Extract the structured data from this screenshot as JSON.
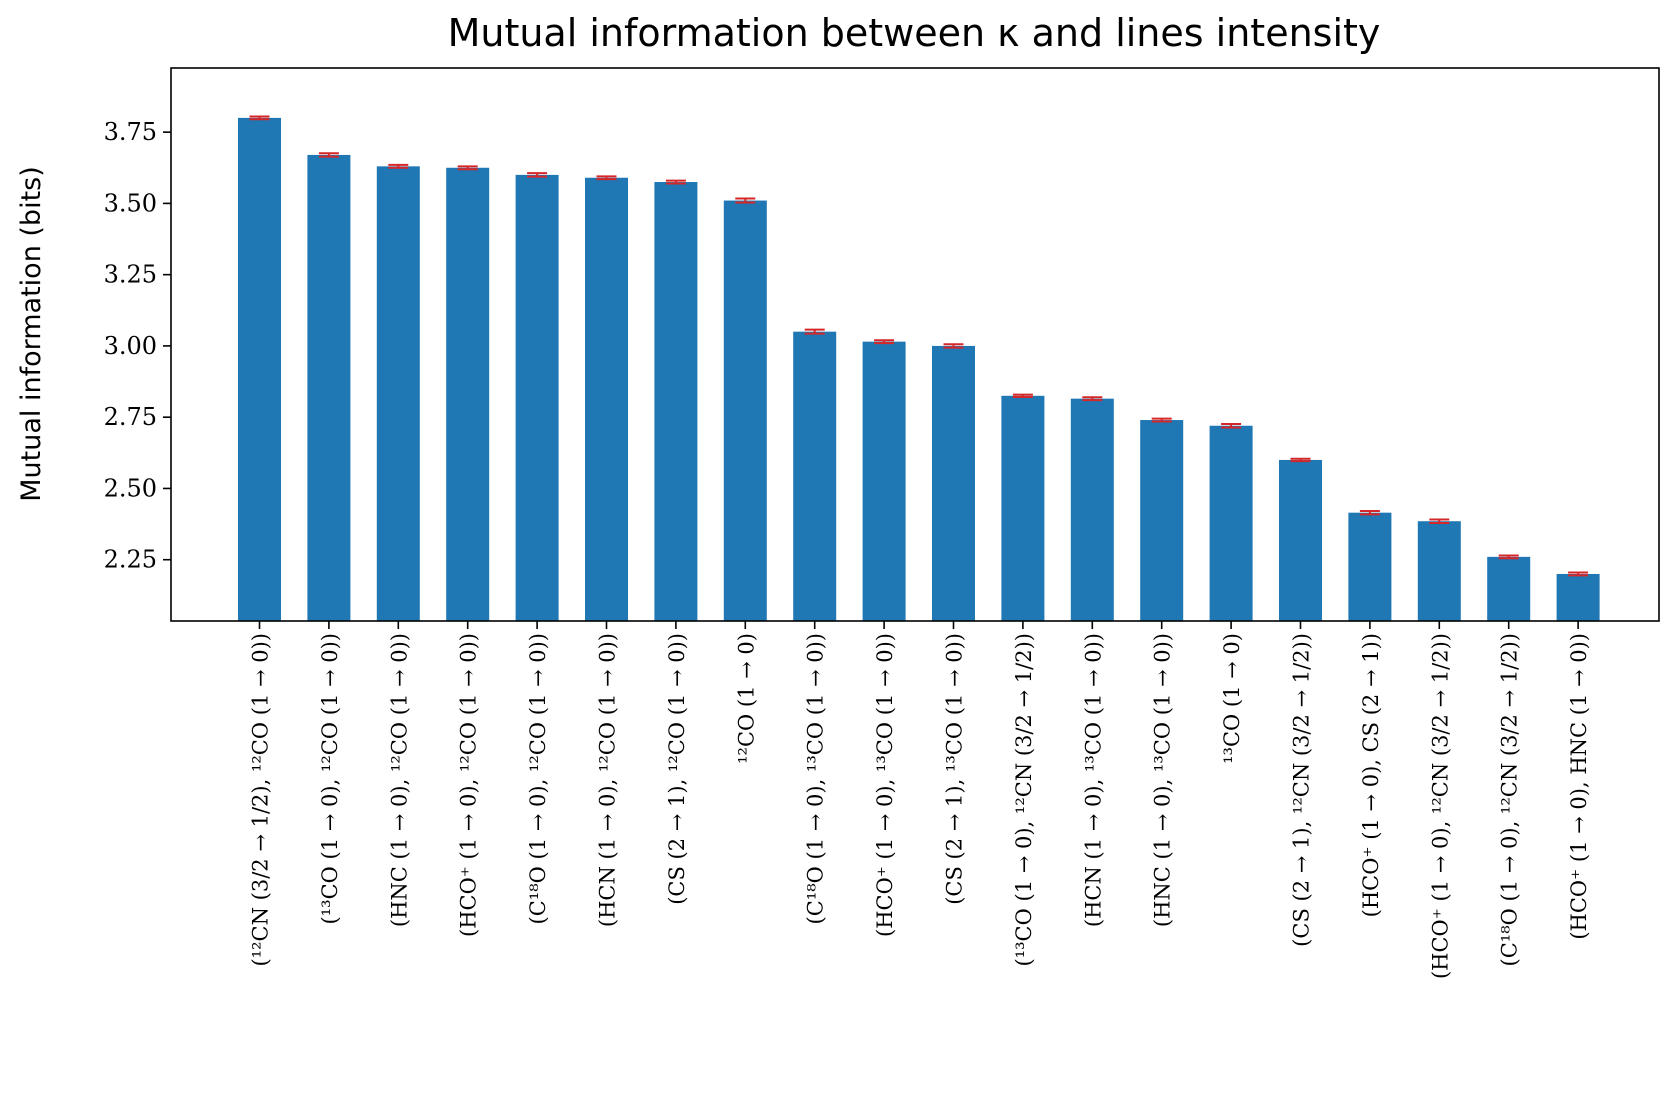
{
  "chart_data": {
    "type": "bar",
    "title": "Mutual information between κ and lines intensity",
    "xlabel": "",
    "ylabel": "Mutual information (bits)",
    "ylim": [
      2.035,
      3.975
    ],
    "yticks": [
      2.25,
      2.5,
      2.75,
      3.0,
      3.25,
      3.5,
      3.75
    ],
    "ytick_labels": [
      "2.25",
      "2.50",
      "2.75",
      "3.00",
      "3.25",
      "3.50",
      "3.75"
    ],
    "grid": false,
    "bar_color": "#1f77b4",
    "error_color": "#d62728",
    "categories": [
      "(¹²CN (3/2 → 1/2), ¹²CO (1 → 0))",
      "(¹³CO (1 → 0), ¹²CO (1 → 0))",
      "(HNC (1 → 0), ¹²CO (1 → 0))",
      "(HCO⁺ (1 → 0), ¹²CO (1 → 0))",
      "(C¹⁸O (1 → 0), ¹²CO (1 → 0))",
      "(HCN (1 → 0), ¹²CO (1 → 0))",
      "(CS (2 → 1), ¹²CO (1 → 0))",
      "¹²CO (1 → 0)",
      "(C¹⁸O (1 → 0), ¹³CO (1 → 0))",
      "(HCO⁺ (1 → 0), ¹³CO (1 → 0))",
      "(CS (2 → 1), ¹³CO (1 → 0))",
      "(¹³CO (1 → 0), ¹²CN (3/2 → 1/2))",
      "(HCN (1 → 0), ¹³CO (1 → 0))",
      "(HNC (1 → 0), ¹³CO (1 → 0))",
      "¹³CO (1 → 0)",
      "(CS (2 → 1), ¹²CN (3/2 → 1/2))",
      "(HCO⁺ (1 → 0), CS (2 → 1))",
      "(HCO⁺ (1 → 0), ¹²CN (3/2 → 1/2))",
      "(C¹⁸O (1 → 0), ¹²CN (3/2 → 1/2))",
      "(HCO⁺ (1 → 0), HNC (1 → 0))"
    ],
    "values": [
      3.8,
      3.67,
      3.63,
      3.625,
      3.6,
      3.59,
      3.575,
      3.51,
      3.05,
      3.015,
      3.0,
      2.825,
      2.815,
      2.74,
      2.72,
      2.6,
      2.415,
      2.385,
      2.26,
      2.2
    ],
    "errors": [
      0.005,
      0.006,
      0.005,
      0.005,
      0.006,
      0.005,
      0.005,
      0.007,
      0.007,
      0.005,
      0.006,
      0.004,
      0.005,
      0.005,
      0.006,
      0.004,
      0.006,
      0.006,
      0.005,
      0.005
    ]
  }
}
